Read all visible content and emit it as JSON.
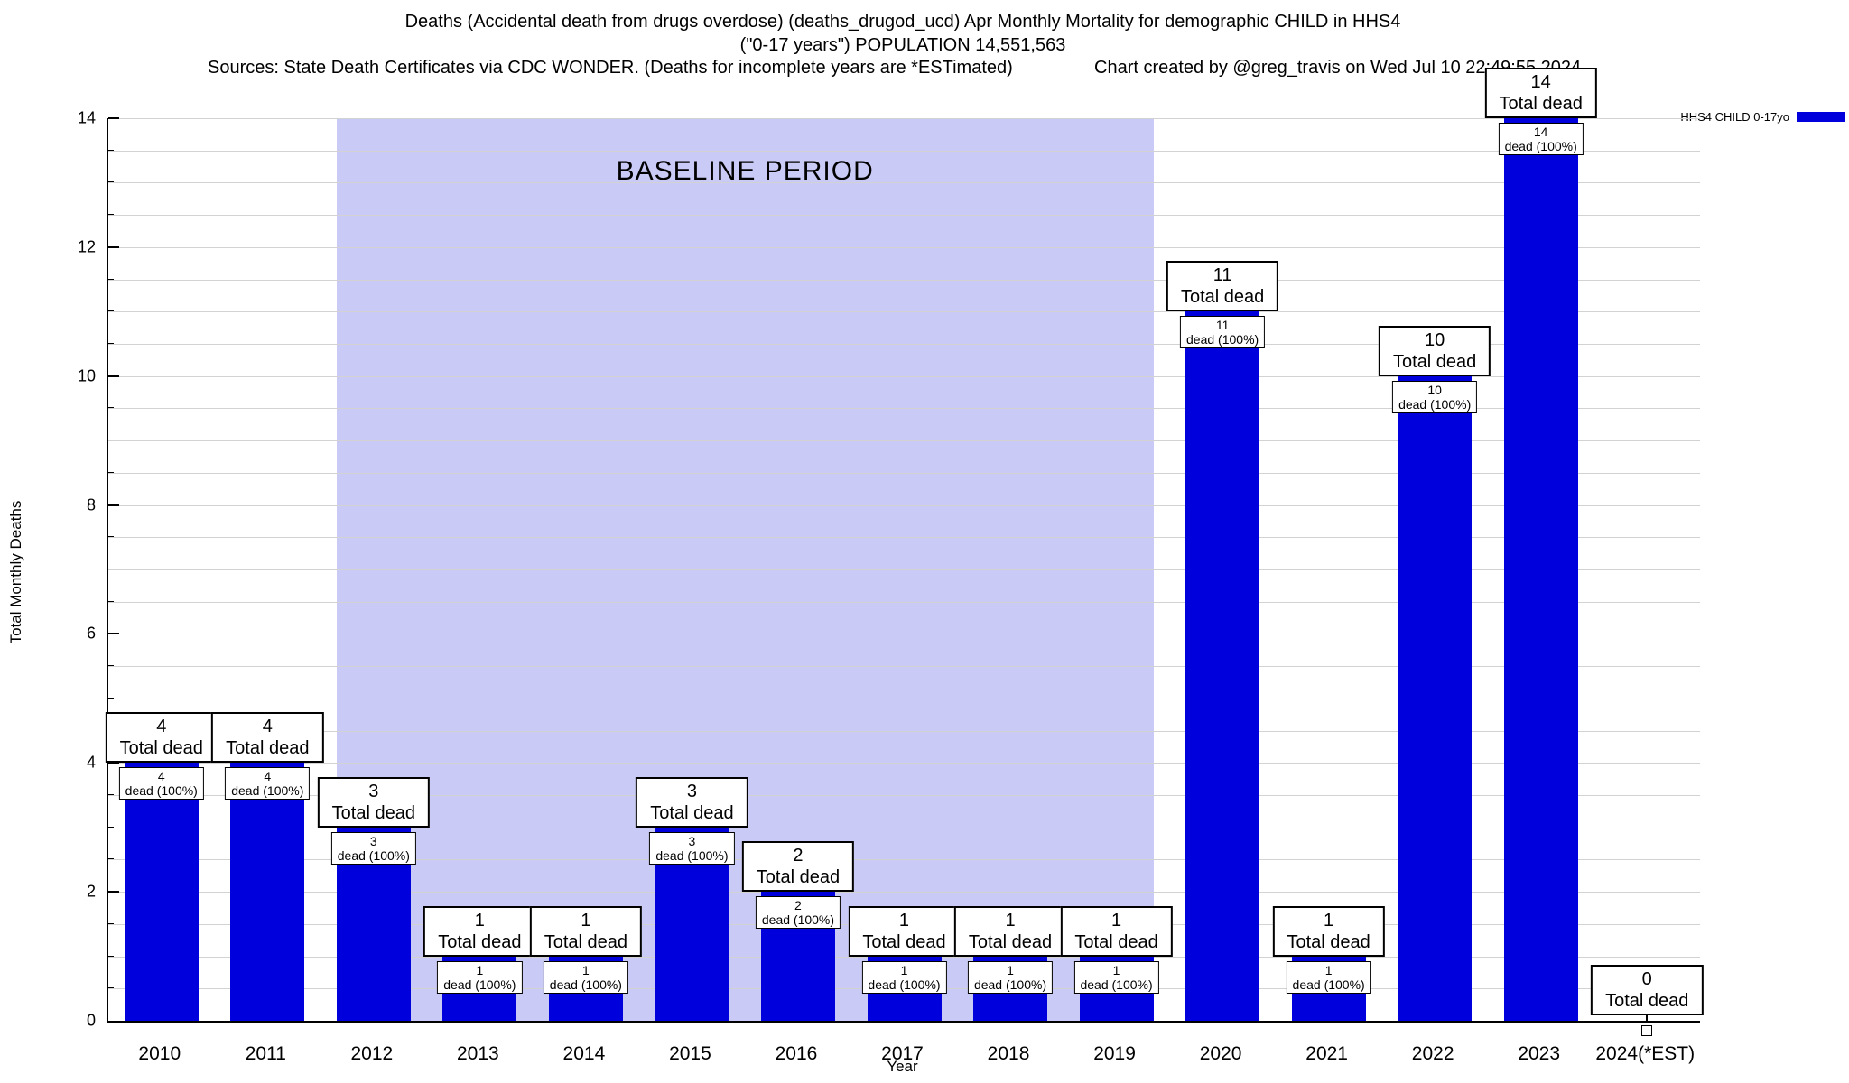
{
  "title": {
    "line1": "Deaths (Accidental death from drugs overdose) (deaths_drugod_ucd) Apr Monthly Mortality for demographic CHILD in HHS4",
    "line2": "(\"0-17 years\") POPULATION 14,551,563",
    "sources": "Sources: State Death Certificates via CDC WONDER. (Deaths for incomplete years are *ESTimated)",
    "credit": "Chart created by @greg_travis on Wed Jul 10 22:49:55 2024"
  },
  "legend": {
    "label": "HHS4 CHILD 0-17yo",
    "color": "#0000dd"
  },
  "baseline": {
    "label": "BASELINE PERIOD",
    "from": "2012",
    "to": "2019",
    "color": "#cacaf6"
  },
  "axes": {
    "ylabel": "Total Monthly Deaths",
    "xlabel": "Year",
    "ymin": 0,
    "ymax": 14,
    "yticks": [
      0,
      2,
      4,
      6,
      8,
      10,
      12,
      14
    ],
    "grid_step": 0.5
  },
  "chart_data": {
    "type": "bar",
    "title": "Deaths (Accidental death from drugs overdose) (deaths_drugod_ucd) Apr Monthly Mortality for demographic CHILD in HHS4 (\"0-17 years\") POPULATION 14,551,563",
    "categories": [
      "2010",
      "2011",
      "2012",
      "2013",
      "2014",
      "2015",
      "2016",
      "2017",
      "2018",
      "2019",
      "2020",
      "2021",
      "2022",
      "2023",
      "2024(*EST)"
    ],
    "values": [
      4,
      4,
      3,
      1,
      1,
      3,
      2,
      1,
      1,
      1,
      11,
      1,
      10,
      14,
      0
    ],
    "series_name": "HHS4 CHILD 0-17yo",
    "bar_color": "#0000dd",
    "xlabel": "Year",
    "ylabel": "Total Monthly Deaths",
    "ylim": [
      0,
      14
    ],
    "grid": true,
    "legend_position": "top-right",
    "baseline_period": [
      "2012",
      "2019"
    ],
    "annotations": {
      "total_label": "Total dead",
      "inner_label": "dead (100%)"
    }
  }
}
